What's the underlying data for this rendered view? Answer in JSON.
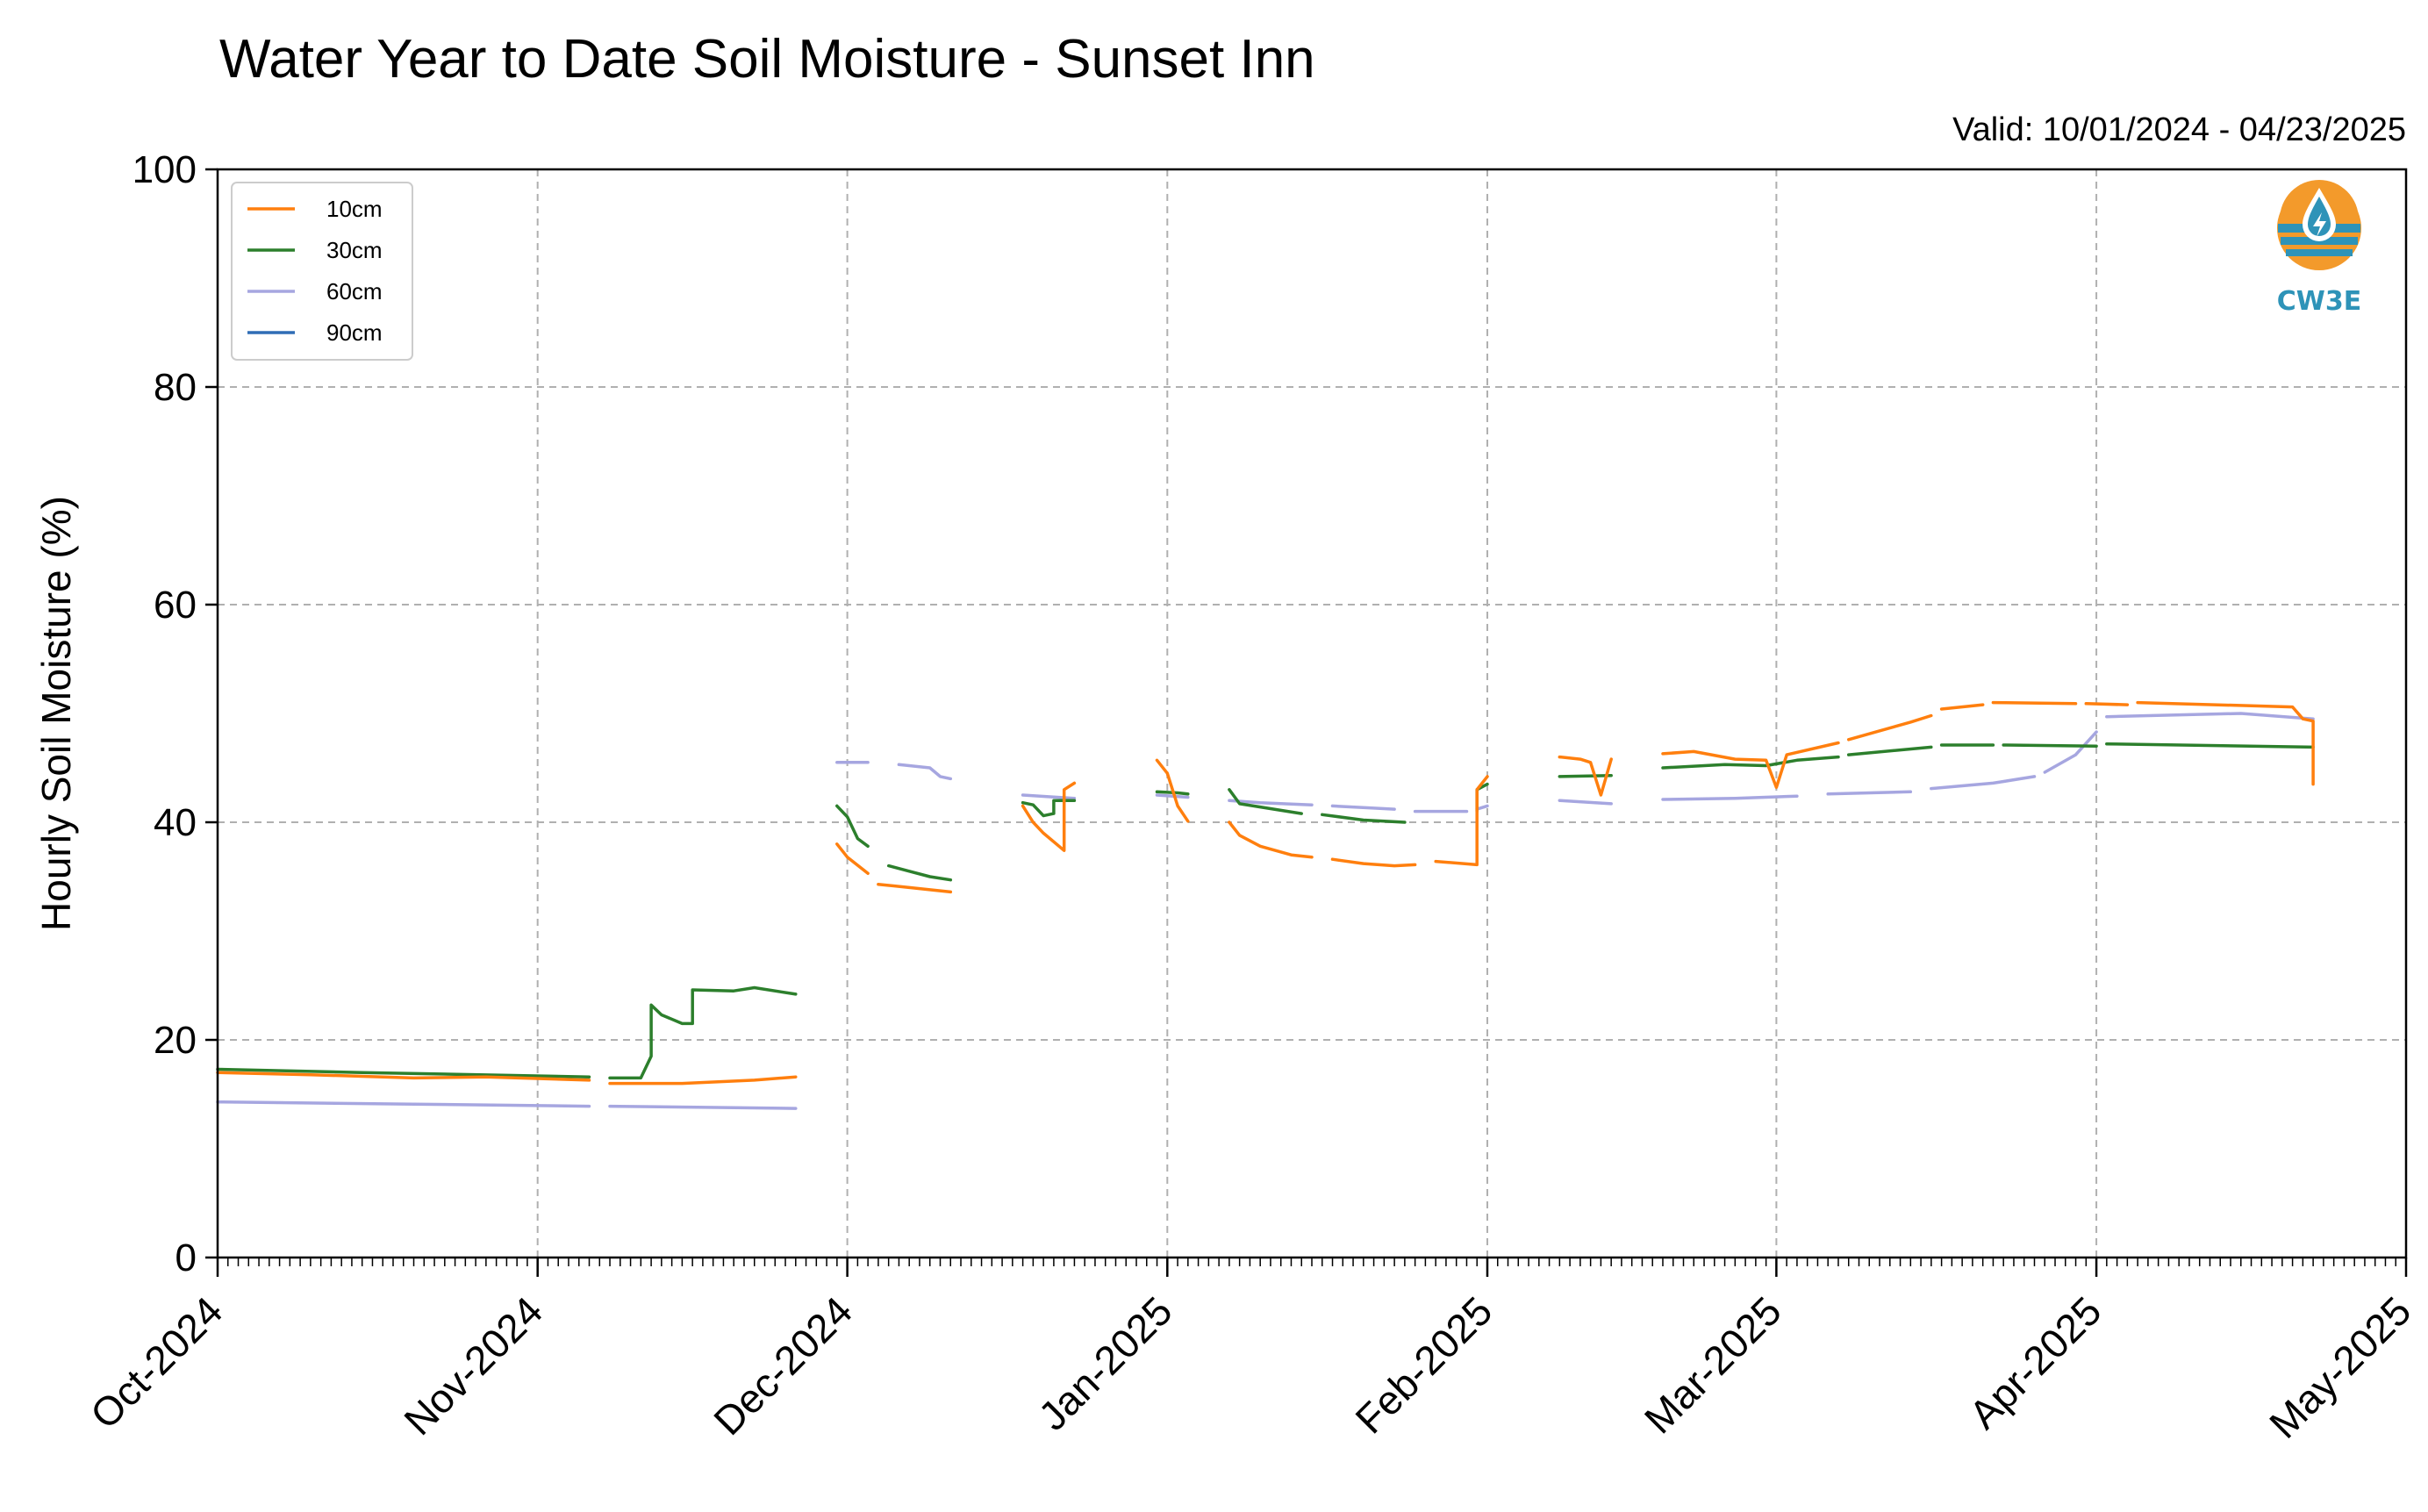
{
  "chart_data": {
    "type": "line",
    "title": "Water Year to Date Soil Moisture - Sunset Inn",
    "subtitle": "Valid: 10/01/2024 - 04/23/2025",
    "ylabel": "Hourly Soil Moisture (%)",
    "xlabel": "",
    "ylim": [
      0,
      100
    ],
    "xlim": [
      "2024-10-01",
      "2025-05-01"
    ],
    "yticks": [
      0,
      20,
      40,
      60,
      80,
      100
    ],
    "xticks": [
      {
        "date": "2024-10-01",
        "label": "Oct-2024"
      },
      {
        "date": "2024-11-01",
        "label": "Nov-2024"
      },
      {
        "date": "2024-12-01",
        "label": "Dec-2024"
      },
      {
        "date": "2025-01-01",
        "label": "Jan-2025"
      },
      {
        "date": "2025-02-01",
        "label": "Feb-2025"
      },
      {
        "date": "2025-03-01",
        "label": "Mar-2025"
      },
      {
        "date": "2025-04-01",
        "label": "Apr-2025"
      },
      {
        "date": "2025-05-01",
        "label": "May-2025"
      }
    ],
    "grid": true,
    "legend_position": "top-left",
    "series": [
      {
        "name": "10cm",
        "color": "#ff7f0e",
        "segments": [
          [
            [
              "2024-10-01",
              17.0
            ],
            [
              "2024-10-10",
              16.8
            ],
            [
              "2024-10-20",
              16.5
            ],
            [
              "2024-10-27",
              16.6
            ],
            [
              "2024-11-06",
              16.3
            ]
          ],
          [
            [
              "2024-11-08",
              16.0
            ],
            [
              "2024-11-15",
              16.0
            ],
            [
              "2024-11-22",
              16.3
            ],
            [
              "2024-11-26",
              16.6
            ]
          ],
          [
            [
              "2024-11-30",
              38.0
            ],
            [
              "2024-12-01",
              36.8
            ],
            [
              "2024-12-03",
              35.3
            ]
          ],
          [
            [
              "2024-12-04",
              34.3
            ],
            [
              "2024-12-07",
              34.0
            ],
            [
              "2024-12-11",
              33.6
            ]
          ],
          [
            [
              "2024-12-18",
              41.5
            ],
            [
              "2024-12-19",
              40.0
            ],
            [
              "2024-12-20",
              39.0
            ],
            [
              "2024-12-22",
              37.4
            ],
            [
              "2024-12-22",
              43.0
            ],
            [
              "2024-12-23",
              43.6
            ]
          ],
          [
            [
              "2024-12-31",
              45.7
            ],
            [
              "2025-01-01",
              44.5
            ],
            [
              "2025-01-02",
              41.5
            ],
            [
              "2025-01-03",
              40.1
            ]
          ],
          [
            [
              "2025-01-07",
              40.0
            ],
            [
              "2025-01-08",
              38.8
            ],
            [
              "2025-01-10",
              37.8
            ],
            [
              "2025-01-13",
              37.0
            ],
            [
              "2025-01-15",
              36.8
            ]
          ],
          [
            [
              "2025-01-17",
              36.6
            ],
            [
              "2025-01-20",
              36.2
            ],
            [
              "2025-01-23",
              36.0
            ],
            [
              "2025-01-25",
              36.1
            ]
          ],
          [
            [
              "2025-01-27",
              36.4
            ],
            [
              "2025-01-31",
              36.1
            ],
            [
              "2025-01-31",
              43.0
            ],
            [
              "2025-02-01",
              44.2
            ]
          ],
          [
            [
              "2025-02-08",
              46.0
            ],
            [
              "2025-02-10",
              45.8
            ],
            [
              "2025-02-11",
              45.5
            ],
            [
              "2025-02-12",
              42.5
            ],
            [
              "2025-02-13",
              45.8
            ]
          ],
          [
            [
              "2025-02-18",
              46.3
            ],
            [
              "2025-02-21",
              46.5
            ],
            [
              "2025-02-25",
              45.8
            ],
            [
              "2025-02-28",
              45.7
            ],
            [
              "2025-03-01",
              43.2
            ],
            [
              "2025-03-02",
              46.2
            ],
            [
              "2025-03-07",
              47.3
            ]
          ],
          [
            [
              "2025-03-08",
              47.6
            ],
            [
              "2025-03-14",
              49.2
            ],
            [
              "2025-03-16",
              49.8
            ]
          ],
          [
            [
              "2025-03-17",
              50.4
            ],
            [
              "2025-03-21",
              50.8
            ]
          ],
          [
            [
              "2025-03-22",
              51.0
            ],
            [
              "2025-03-30",
              50.9
            ]
          ],
          [
            [
              "2025-03-31",
              50.9
            ],
            [
              "2025-04-04",
              50.8
            ]
          ],
          [
            [
              "2025-04-05",
              51.0
            ],
            [
              "2025-04-20",
              50.6
            ],
            [
              "2025-04-21",
              49.5
            ],
            [
              "2025-04-22",
              49.3
            ],
            [
              "2025-04-22",
              43.5
            ]
          ]
        ]
      },
      {
        "name": "30cm",
        "color": "#2c7f2c",
        "segments": [
          [
            [
              "2024-10-01",
              17.3
            ],
            [
              "2024-10-15",
              17.0
            ],
            [
              "2024-11-06",
              16.6
            ]
          ],
          [
            [
              "2024-11-08",
              16.5
            ],
            [
              "2024-11-11",
              16.5
            ],
            [
              "2024-11-12",
              18.5
            ],
            [
              "2024-11-12",
              23.2
            ],
            [
              "2024-11-13",
              22.3
            ],
            [
              "2024-11-15",
              21.5
            ],
            [
              "2024-11-16",
              21.5
            ],
            [
              "2024-11-16",
              24.6
            ],
            [
              "2024-11-20",
              24.5
            ],
            [
              "2024-11-22",
              24.8
            ],
            [
              "2024-11-26",
              24.2
            ]
          ],
          [
            [
              "2024-11-30",
              41.5
            ],
            [
              "2024-12-01",
              40.5
            ],
            [
              "2024-12-02",
              38.5
            ],
            [
              "2024-12-03",
              37.8
            ]
          ],
          [
            [
              "2024-12-05",
              36.0
            ],
            [
              "2024-12-07",
              35.5
            ],
            [
              "2024-12-09",
              35.0
            ],
            [
              "2024-12-11",
              34.7
            ]
          ],
          [
            [
              "2024-12-18",
              41.8
            ],
            [
              "2024-12-19",
              41.6
            ],
            [
              "2024-12-20",
              40.6
            ],
            [
              "2024-12-21",
              40.8
            ],
            [
              "2024-12-21",
              42.0
            ],
            [
              "2024-12-23",
              42.0
            ]
          ],
          [
            [
              "2024-12-31",
              42.8
            ],
            [
              "2025-01-02",
              42.7
            ],
            [
              "2025-01-03",
              42.6
            ]
          ],
          [
            [
              "2025-01-07",
              43.0
            ],
            [
              "2025-01-08",
              41.7
            ],
            [
              "2025-01-10",
              41.4
            ],
            [
              "2025-01-14",
              40.8
            ]
          ],
          [
            [
              "2025-01-16",
              40.7
            ],
            [
              "2025-01-20",
              40.2
            ],
            [
              "2025-01-24",
              40.0
            ]
          ],
          [
            [
              "2025-01-31",
              41.0
            ],
            [
              "2025-01-31",
              43.0
            ],
            [
              "2025-02-01",
              43.5
            ]
          ],
          [
            [
              "2025-02-08",
              44.2
            ],
            [
              "2025-02-13",
              44.3
            ]
          ],
          [
            [
              "2025-02-18",
              45.0
            ],
            [
              "2025-02-24",
              45.3
            ],
            [
              "2025-02-28",
              45.2
            ],
            [
              "2025-03-03",
              45.7
            ],
            [
              "2025-03-07",
              46.0
            ]
          ],
          [
            [
              "2025-03-08",
              46.2
            ],
            [
              "2025-03-16",
              46.9
            ]
          ],
          [
            [
              "2025-03-17",
              47.1
            ],
            [
              "2025-03-22",
              47.1
            ]
          ],
          [
            [
              "2025-03-23",
              47.1
            ],
            [
              "2025-04-01",
              47.0
            ]
          ],
          [
            [
              "2025-04-02",
              47.2
            ],
            [
              "2025-04-22",
              46.9
            ]
          ]
        ]
      },
      {
        "name": "60cm",
        "color": "#a6a6e0",
        "segments": [
          [
            [
              "2024-10-01",
              14.3
            ],
            [
              "2024-10-20",
              14.1
            ],
            [
              "2024-11-06",
              13.9
            ]
          ],
          [
            [
              "2024-11-08",
              13.9
            ],
            [
              "2024-11-26",
              13.7
            ]
          ],
          [
            [
              "2024-11-30",
              45.5
            ],
            [
              "2024-12-03",
              45.5
            ]
          ],
          [
            [
              "2024-12-06",
              45.3
            ],
            [
              "2024-12-09",
              45.0
            ],
            [
              "2024-12-10",
              44.2
            ],
            [
              "2024-12-11",
              44.0
            ]
          ],
          [
            [
              "2024-12-18",
              42.5
            ],
            [
              "2024-12-23",
              42.2
            ]
          ],
          [
            [
              "2024-12-31",
              42.5
            ],
            [
              "2025-01-03",
              42.3
            ]
          ],
          [
            [
              "2025-01-07",
              42.0
            ],
            [
              "2025-01-10",
              41.8
            ],
            [
              "2025-01-15",
              41.6
            ]
          ],
          [
            [
              "2025-01-17",
              41.5
            ],
            [
              "2025-01-21",
              41.3
            ],
            [
              "2025-01-23",
              41.2
            ]
          ],
          [
            [
              "2025-01-25",
              41.0
            ],
            [
              "2025-01-30",
              41.0
            ]
          ],
          [
            [
              "2025-01-31",
              41.2
            ],
            [
              "2025-02-01",
              41.5
            ]
          ],
          [
            [
              "2025-02-08",
              42.0
            ],
            [
              "2025-02-13",
              41.7
            ]
          ],
          [
            [
              "2025-02-18",
              42.1
            ],
            [
              "2025-02-25",
              42.2
            ],
            [
              "2025-03-03",
              42.4
            ]
          ],
          [
            [
              "2025-03-06",
              42.6
            ],
            [
              "2025-03-14",
              42.8
            ]
          ],
          [
            [
              "2025-03-16",
              43.1
            ],
            [
              "2025-03-22",
              43.6
            ],
            [
              "2025-03-26",
              44.2
            ]
          ],
          [
            [
              "2025-03-27",
              44.6
            ],
            [
              "2025-03-30",
              46.2
            ],
            [
              "2025-04-01",
              48.3
            ]
          ],
          [
            [
              "2025-04-02",
              49.7
            ],
            [
              "2025-04-15",
              50.0
            ],
            [
              "2025-04-22",
              49.5
            ]
          ]
        ]
      },
      {
        "name": "90cm",
        "color": "#2f6db5",
        "segments": []
      }
    ]
  },
  "logo": {
    "text": "CW3E",
    "colors": {
      "orange": "#f39a2b",
      "blue": "#2e93b8"
    }
  }
}
